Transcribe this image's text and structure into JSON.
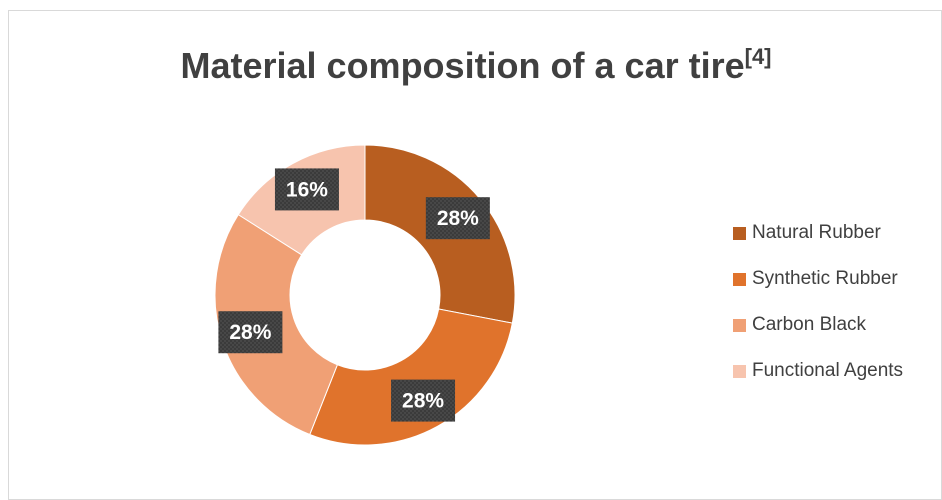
{
  "chart_data": {
    "type": "pie",
    "variant": "doughnut",
    "title": "Material composition of a car tire",
    "title_superscript": "[4]",
    "categories": [
      "Natural Rubber",
      "Synthetic Rubber",
      "Carbon Black",
      "Functional Agents"
    ],
    "values": [
      28,
      28,
      28,
      16
    ],
    "data_labels": [
      "28%",
      "28%",
      "28%",
      "16%"
    ],
    "colors": [
      "#b85e20",
      "#e0732c",
      "#f0a075",
      "#f7c4ae"
    ],
    "legend_position": "right",
    "label_box_color": "#404040",
    "label_text_color": "#ffffff"
  }
}
